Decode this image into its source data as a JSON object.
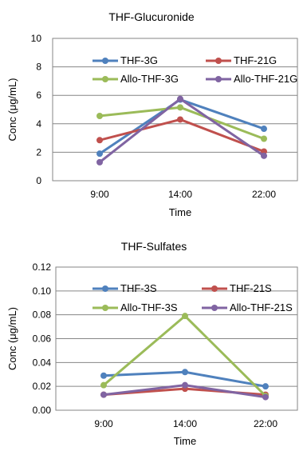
{
  "chart_data": [
    {
      "type": "line",
      "title": "THF-Glucuronide",
      "xlabel": "Time",
      "ylabel": "Conc (μg/mL)",
      "categories": [
        "9:00",
        "14:00",
        "22:00"
      ],
      "ylim": [
        0,
        10
      ],
      "yticks": [
        0,
        2,
        4,
        6,
        8,
        10
      ],
      "ytick_labels": [
        "0",
        "2",
        "4",
        "6",
        "8",
        "10"
      ],
      "grid": true,
      "legend": "inside-top",
      "series": [
        {
          "name": "THF-3G",
          "color": "#4f81bd",
          "values": [
            1.9,
            5.7,
            3.65
          ]
        },
        {
          "name": "THF-21G",
          "color": "#c0504d",
          "values": [
            2.85,
            4.3,
            2.05
          ]
        },
        {
          "name": "Allo-THF-3G",
          "color": "#9bbb59",
          "values": [
            4.55,
            5.15,
            2.95
          ]
        },
        {
          "name": "Allo-THF-21G",
          "color": "#8064a2",
          "values": [
            1.3,
            5.75,
            1.75
          ]
        }
      ]
    },
    {
      "type": "line",
      "title": "THF-Sulfates",
      "xlabel": "Time",
      "ylabel": "Conc (μg/mL)",
      "categories": [
        "9:00",
        "14:00",
        "22:00"
      ],
      "ylim": [
        0,
        0.12
      ],
      "yticks": [
        0,
        0.02,
        0.04,
        0.06,
        0.08,
        0.1,
        0.12
      ],
      "ytick_labels": [
        "0.00",
        "0.02",
        "0.04",
        "0.06",
        "0.08",
        "0.10",
        "0.12"
      ],
      "grid": true,
      "legend": "inside-top",
      "series": [
        {
          "name": "THF-3S",
          "color": "#4f81bd",
          "values": [
            0.029,
            0.032,
            0.02
          ]
        },
        {
          "name": "THF-21S",
          "color": "#c0504d",
          "values": [
            0.013,
            0.018,
            0.013
          ]
        },
        {
          "name": "Allo-THF-3S",
          "color": "#9bbb59",
          "values": [
            0.021,
            0.079,
            0.012
          ]
        },
        {
          "name": "Allo-THF-21S",
          "color": "#8064a2",
          "values": [
            0.013,
            0.021,
            0.011
          ]
        }
      ]
    }
  ]
}
